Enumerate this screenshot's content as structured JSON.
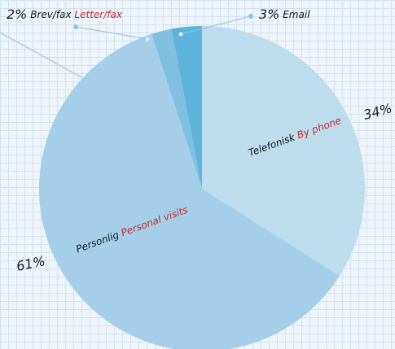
{
  "chart_data": {
    "type": "pie",
    "categories": [
      "Telefonisk",
      "Personlig",
      "Brev/fax",
      "Email"
    ],
    "categories_en": [
      "By phone",
      "Personal visits",
      "Letter/fax",
      null
    ],
    "values": [
      34,
      61,
      2,
      3
    ],
    "value_labels": [
      "34%",
      "61%",
      "2%",
      "3%"
    ],
    "colors": [
      "#bddced",
      "#a5cfe8",
      "#80bfe0",
      "#5eb3da"
    ]
  }
}
